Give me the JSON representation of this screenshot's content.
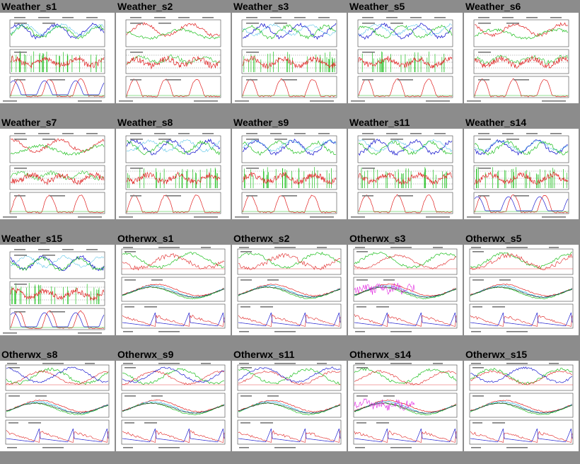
{
  "panels": [
    {
      "label": "Weather_s1",
      "kind": "weather",
      "variant": "a"
    },
    {
      "label": "Weather_s2",
      "kind": "weather",
      "variant": "b"
    },
    {
      "label": "Weather_s3",
      "kind": "weather",
      "variant": "a"
    },
    {
      "label": "Weather_s5",
      "kind": "weather",
      "variant": "a"
    },
    {
      "label": "Weather_s6",
      "kind": "weather",
      "variant": "b"
    },
    {
      "label": "Weather_s7",
      "kind": "weather",
      "variant": "b"
    },
    {
      "label": "Weather_s8",
      "kind": "weather",
      "variant": "a"
    },
    {
      "label": "Weather_s9",
      "kind": "weather",
      "variant": "a"
    },
    {
      "label": "Weather_s11",
      "kind": "weather",
      "variant": "a"
    },
    {
      "label": "Weather_s14",
      "kind": "weather",
      "variant": "a"
    },
    {
      "label": "Weather_s15",
      "kind": "weather",
      "variant": "a"
    },
    {
      "label": "Otherwx_s1",
      "kind": "otherwx",
      "variant": "a"
    },
    {
      "label": "Otherwx_s2",
      "kind": "otherwx",
      "variant": "a"
    },
    {
      "label": "Otherwx_s3",
      "kind": "otherwx",
      "variant": "m"
    },
    {
      "label": "Otherwx_s5",
      "kind": "otherwx",
      "variant": "a"
    },
    {
      "label": "Otherwx_s8",
      "kind": "otherwx",
      "variant": "b"
    },
    {
      "label": "Otherwx_s9",
      "kind": "otherwx",
      "variant": "b"
    },
    {
      "label": "Otherwx_s11",
      "kind": "otherwx",
      "variant": "b"
    },
    {
      "label": "Otherwx_s14",
      "kind": "otherwx",
      "variant": "m"
    },
    {
      "label": "Otherwx_s15",
      "kind": "otherwx",
      "variant": "b"
    }
  ],
  "colors": {
    "background": "#8c8c8c",
    "series_red": "#e02020",
    "series_green": "#20c020",
    "series_blue": "#2020d0",
    "series_cyan": "#20b0e0",
    "series_magenta": "#e020e0",
    "series_black": "#202020"
  }
}
